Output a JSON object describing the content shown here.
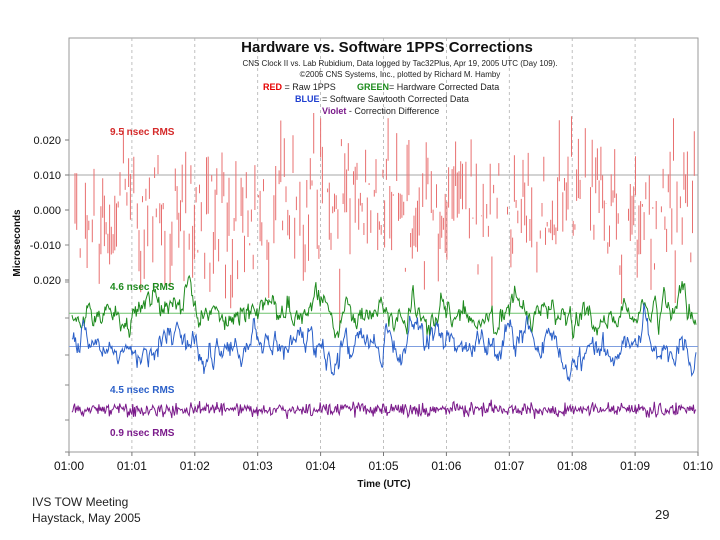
{
  "footer": {
    "event": "IVS TOW Meeting",
    "location_date": "Haystack, May 2005",
    "page_number": "29"
  },
  "chart_data": {
    "type": "line",
    "title": "Hardware vs. Software 1PPS Corrections",
    "subtitle_lines": [
      "CNS Clock II vs. Lab Rubidium, Data logged by Tac32Plus, Apr 19, 2005 UTC (Day 109).",
      "©2005 CNS Systems, Inc., plotted by Richard M. Hamby"
    ],
    "legend": [
      {
        "key": "RED",
        "text": " = Raw 1PPS",
        "color": "#e60000"
      },
      {
        "key": "GREEN",
        "text": "= Hardware Corrected Data",
        "color": "#1a8a1a"
      },
      {
        "key": "BLUE",
        "text": " = Software Sawtooth Corrected Data",
        "color": "#1f3fd0"
      },
      {
        "key": "Violet",
        "text": " - Correction Difference",
        "color": "#7a1a8a"
      }
    ],
    "xlabel": "Time (UTC)",
    "ylabel": "Microseconds",
    "x_ticks": [
      "01:00",
      "01:01",
      "01:02",
      "01:03",
      "01:04",
      "01:05",
      "01:06",
      "01:07",
      "01:08",
      "01:09",
      "01:10"
    ],
    "x_range_minutes": [
      0,
      10
    ],
    "y_ticks": [
      "0.020",
      "0.010",
      "0.000",
      "-0.010",
      "0.020"
    ],
    "grid": true,
    "series": [
      {
        "name": "Raw 1PPS",
        "color": "#e87070",
        "rms_label": "9.5 nsec RMS",
        "rms_color": "#d42a2a",
        "baseline_offset": 0.0,
        "amplitude_nsec": 16,
        "style": "spikes"
      },
      {
        "name": "Hardware Corrected Data",
        "color": "#1e8a1e",
        "rms_label": "4.6 nsec RMS",
        "rms_color": "#1e8a1e",
        "baseline_offset": -0.0295,
        "amplitude_nsec": 6,
        "style": "walk"
      },
      {
        "name": "Software Sawtooth Corrected Data",
        "color": "#2a5fc8",
        "rms_label": "4.5 nsec RMS",
        "rms_color": "#2a5fc8",
        "baseline_offset": -0.039,
        "amplitude_nsec": 6,
        "style": "walk"
      },
      {
        "name": "Correction Difference",
        "color": "#7a1a8a",
        "rms_label": "0.9 nsec RMS",
        "rms_color": "#7a1a8a",
        "baseline_offset": -0.057,
        "amplitude_nsec": 1,
        "style": "noise"
      }
    ],
    "colors": {
      "frame": "#9a9a9a",
      "grid": "#b0b0b0",
      "green_ref": "#6fc46f",
      "blue_ref": "#7f9fe0"
    }
  }
}
